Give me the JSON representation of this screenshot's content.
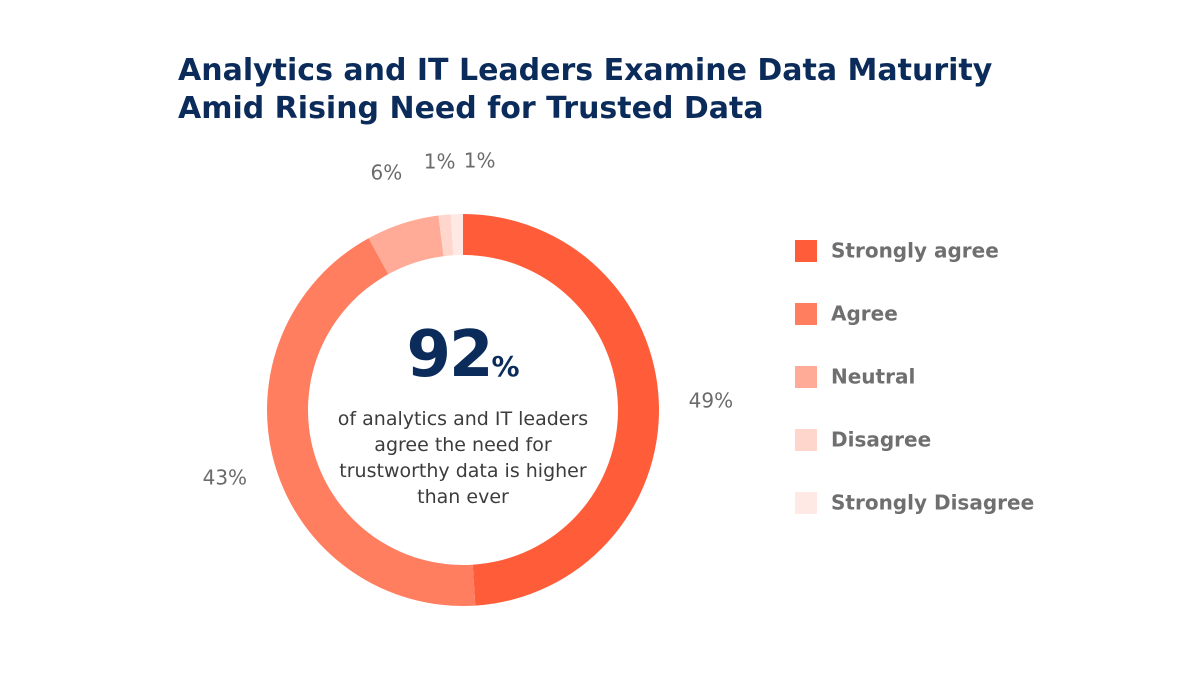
{
  "chart_data": {
    "type": "donut",
    "title": "Analytics and IT Leaders Examine Data Maturity Amid Rising Need for Trusted Data",
    "categories": [
      "Strongly agree",
      "Agree",
      "Neutral",
      "Disagree",
      "Strongly Disagree"
    ],
    "values": [
      49,
      43,
      6,
      1,
      1
    ],
    "value_labels": [
      "49%",
      "43%",
      "6%",
      "1%",
      "1%"
    ],
    "colors": [
      "#ff5d3a",
      "#ff7e60",
      "#ffab97",
      "#ffd6cc",
      "#ffe9e4"
    ],
    "center_value": "92",
    "center_unit": "%",
    "center_text": "of analytics and IT leaders agree the need for trustworthy data is higher than ever",
    "legend": "right"
  }
}
